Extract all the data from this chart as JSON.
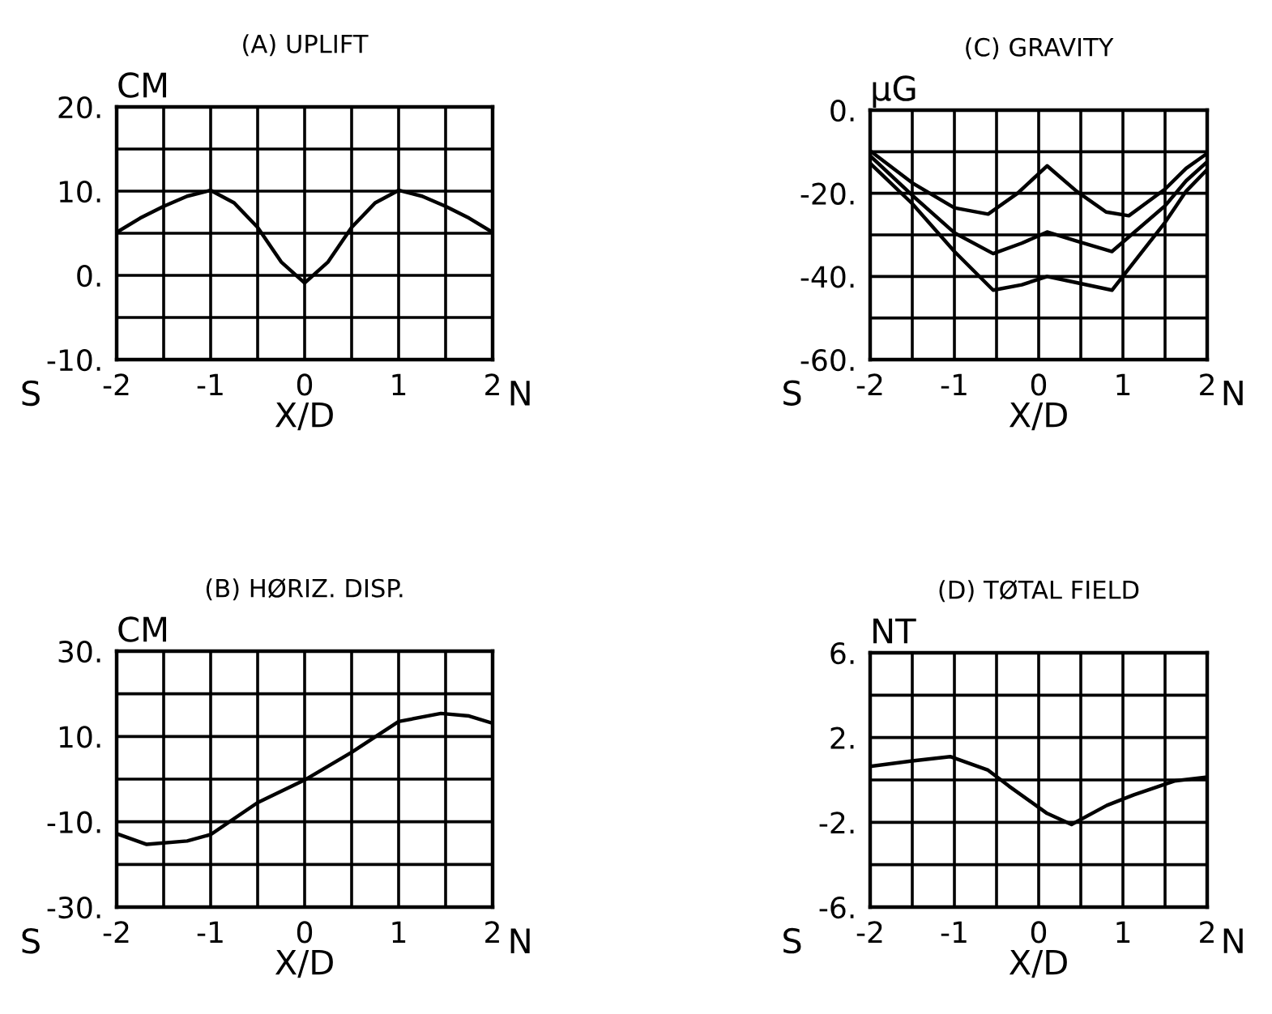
{
  "chart_data": [
    {
      "type": "line",
      "title": "(A) UPLIFT",
      "ylabel": "CM",
      "xlabel": "X/D",
      "grid": true,
      "annotations": [
        "S",
        "N"
      ],
      "xlim": [
        -2,
        2
      ],
      "ylim": [
        -10,
        20
      ],
      "xticks": [
        -2,
        {
          "value": -1.5,
          "label": null
        },
        -1,
        {
          "value": -0.5,
          "label": null
        },
        0,
        {
          "value": 0.5,
          "label": null
        },
        1,
        {
          "value": 1.5,
          "label": null
        },
        2
      ],
      "yticks": [
        {
          "value": -10,
          "label": "-10."
        },
        {
          "value": -5,
          "label": null
        },
        {
          "value": 0,
          "label": "0."
        },
        {
          "value": 5,
          "label": null
        },
        {
          "value": 10,
          "label": "10."
        },
        {
          "value": 15,
          "label": null
        },
        {
          "value": 20,
          "label": "20."
        }
      ],
      "series": [
        {
          "color": "#000000",
          "x": [
            -2,
            -1.75,
            -1.5,
            -1.25,
            -1,
            -0.75,
            -0.5,
            -0.25,
            0,
            0.25,
            0.5,
            0.75,
            1,
            1.25,
            1.5,
            1.75,
            2
          ],
          "values": [
            5.1,
            6.8,
            8.2,
            9.4,
            10.1,
            8.6,
            5.7,
            1.6,
            -0.9,
            1.6,
            5.7,
            8.6,
            10.1,
            9.4,
            8.2,
            6.8,
            5.1
          ]
        }
      ]
    },
    {
      "type": "line",
      "title": "(C) GRAVITY",
      "ylabel": "µG",
      "xlabel": "X/D",
      "grid": true,
      "annotations": [
        "S",
        "N"
      ],
      "xlim": [
        -2,
        2
      ],
      "ylim": [
        -60,
        0
      ],
      "xticks": [
        -2,
        {
          "value": -1.5,
          "label": null
        },
        -1,
        {
          "value": -0.5,
          "label": null
        },
        0,
        {
          "value": 0.5,
          "label": null
        },
        1,
        {
          "value": 1.5,
          "label": null
        },
        2
      ],
      "yticks": [
        {
          "value": -60,
          "label": "-60."
        },
        {
          "value": -50,
          "label": null
        },
        {
          "value": -40,
          "label": "-40."
        },
        {
          "value": -30,
          "label": null
        },
        {
          "value": -20,
          "label": "-20."
        },
        {
          "value": -10,
          "label": null
        },
        {
          "value": 0,
          "label": "0."
        }
      ],
      "series": [
        {
          "color": "#000000",
          "x": [
            -2,
            -1.5,
            -1,
            -0.6,
            -0.25,
            0.1,
            0.45,
            0.8,
            1.07,
            1.5,
            1.75,
            2
          ],
          "values": [
            -9.8,
            -17.5,
            -23.5,
            -25,
            -20,
            -13.4,
            -19.5,
            -24.5,
            -25.4,
            -19,
            -14,
            -10.4
          ]
        },
        {
          "color": "#000000",
          "x": [
            -2,
            -1.5,
            -1,
            -0.54,
            -0.2,
            0.1,
            0.45,
            0.87,
            1.5,
            1.75,
            2
          ],
          "values": [
            -11,
            -20.5,
            -29.5,
            -34.5,
            -32,
            -29.3,
            -31.5,
            -34,
            -23,
            -17,
            -12.4
          ]
        },
        {
          "color": "#000000",
          "x": [
            -2,
            -1.5,
            -1,
            -0.54,
            -0.2,
            0.1,
            0.45,
            0.87,
            1.5,
            1.75,
            2
          ],
          "values": [
            -12.8,
            -22.5,
            -34,
            -43.3,
            -42,
            -40,
            -41.5,
            -43.3,
            -27,
            -19.5,
            -14.3
          ]
        }
      ]
    },
    {
      "type": "line",
      "title": "(B) HØRIZ. DISP.",
      "ylabel": "CM",
      "xlabel": "X/D",
      "grid": true,
      "annotations": [
        "S",
        "N"
      ],
      "xlim": [
        -2,
        2
      ],
      "ylim": [
        -30,
        30
      ],
      "xticks": [
        -2,
        {
          "value": -1.5,
          "label": null
        },
        -1,
        {
          "value": -0.5,
          "label": null
        },
        0,
        {
          "value": 0.5,
          "label": null
        },
        1,
        {
          "value": 1.5,
          "label": null
        },
        2
      ],
      "yticks": [
        {
          "value": -30,
          "label": "-30."
        },
        {
          "value": -20,
          "label": null
        },
        {
          "value": -10,
          "label": "-10."
        },
        {
          "value": 0,
          "label": null
        },
        {
          "value": 10,
          "label": "10."
        },
        {
          "value": 20,
          "label": null
        },
        {
          "value": 30,
          "label": "30."
        }
      ],
      "series": [
        {
          "color": "#000000",
          "x": [
            -2,
            -1.68,
            -1.25,
            -1,
            -0.5,
            0,
            0.5,
            1,
            1.45,
            1.75,
            2
          ],
          "values": [
            -12.8,
            -15.3,
            -14.5,
            -13,
            -5.5,
            -0.2,
            6.3,
            13.5,
            15.4,
            14.8,
            13.1
          ]
        }
      ]
    },
    {
      "type": "line",
      "title": "(D) TØTAL FIELD",
      "ylabel": "NT",
      "xlabel": "X/D",
      "grid": true,
      "annotations": [
        "S",
        "N"
      ],
      "xlim": [
        -2,
        2
      ],
      "ylim": [
        -6,
        6
      ],
      "xticks": [
        -2,
        {
          "value": -1.5,
          "label": null
        },
        -1,
        {
          "value": -0.5,
          "label": null
        },
        0,
        {
          "value": 0.5,
          "label": null
        },
        1,
        {
          "value": 1.5,
          "label": null
        },
        2
      ],
      "yticks": [
        {
          "value": -6,
          "label": "-6."
        },
        {
          "value": -4,
          "label": null
        },
        {
          "value": -2,
          "label": "-2."
        },
        {
          "value": 0,
          "label": null
        },
        {
          "value": 2,
          "label": "2."
        },
        {
          "value": 4,
          "label": null
        },
        {
          "value": 6,
          "label": "6."
        }
      ],
      "series": [
        {
          "color": "#000000",
          "x": [
            -2,
            -1.5,
            -1.05,
            -0.6,
            -0.35,
            0.1,
            0.39,
            0.81,
            1.13,
            1.61,
            2
          ],
          "values": [
            0.64,
            0.9,
            1.1,
            0.46,
            -0.3,
            -1.58,
            -2.1,
            -1.2,
            -0.7,
            -0.05,
            0.13
          ]
        }
      ]
    }
  ]
}
